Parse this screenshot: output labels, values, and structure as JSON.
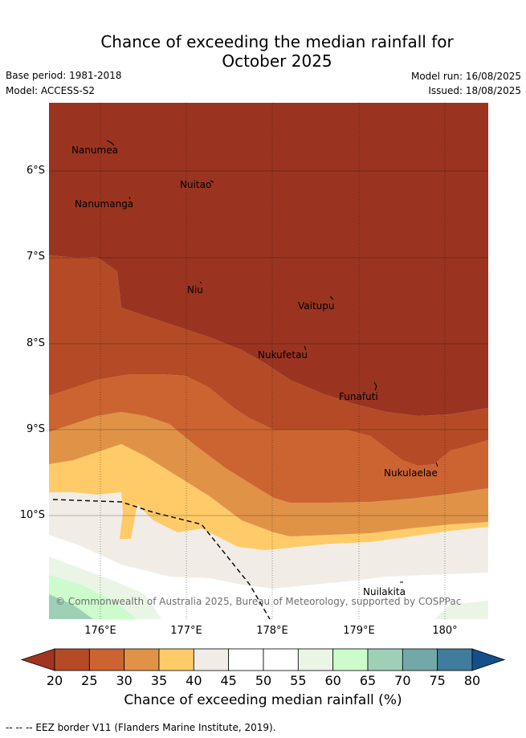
{
  "header": {
    "title_line1": "Chance of exceeding the median rainfall for",
    "title_line2": "October 2025",
    "base_period": "Base period: 1981-2018",
    "model": "Model: ACCESS-S2",
    "model_run": "Model run: 16/08/2025",
    "issued": "Issued: 18/08/2025"
  },
  "map": {
    "lat_labels": [
      "6°S",
      "7°S",
      "8°S",
      "9°S",
      "10°S"
    ],
    "lon_labels": [
      "176°E",
      "177°E",
      "178°E",
      "179°E",
      "180°"
    ],
    "places": [
      "Nanumea",
      "Nuitao",
      "Nanumanga",
      "Niu",
      "Vaitupu",
      "Nukufetau",
      "Funafuti",
      "Nukulaelae",
      "Nuilakita"
    ],
    "copyright": "© Commonwealth of Australia 2025, Bureau of Meteorology, supported by COSPPac"
  },
  "colorbar": {
    "ticks": [
      "20",
      "25",
      "30",
      "35",
      "40",
      "45",
      "50",
      "55",
      "60",
      "65",
      "70",
      "75",
      "80"
    ],
    "colors": [
      "#a0361f",
      "#b54b26",
      "#cc6431",
      "#e09347",
      "#ffcb69",
      "#f1ede6",
      "#ffffff",
      "#ffffff",
      "#eaf5e6",
      "#ccfbcc",
      "#9ed0b8",
      "#72a9a8",
      "#407c9c",
      "#154f8b"
    ],
    "label": "Chance of exceeding median rainfall (%)"
  },
  "footer": {
    "eez_note": "--  --  -- EEZ border V11 (Flanders Marine Institute, 2019)."
  }
}
